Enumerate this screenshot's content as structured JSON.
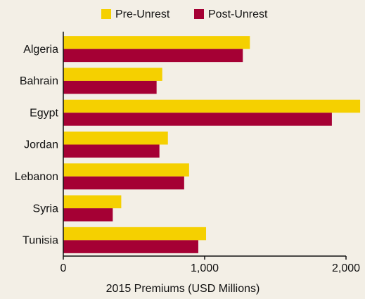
{
  "chart_data": {
    "type": "bar",
    "orientation": "horizontal",
    "categories": [
      "Algeria",
      "Bahrain",
      "Egypt",
      "Jordan",
      "Lebanon",
      "Syria",
      "Tunisia"
    ],
    "series": [
      {
        "name": "Pre-Unrest",
        "color": "#f5d000",
        "values": [
          1320,
          700,
          2100,
          740,
          890,
          410,
          1010
        ]
      },
      {
        "name": "Post-Unrest",
        "color": "#a50034",
        "values": [
          1270,
          660,
          1900,
          680,
          855,
          350,
          955
        ]
      }
    ],
    "xlabel": "2015 Premiums (USD Millions)",
    "xlim": [
      0,
      2000
    ],
    "xticks": [
      0,
      {
        "value": 1000,
        "label": "1,000"
      },
      {
        "value": 2000,
        "label": "2,000"
      }
    ],
    "legend": "top",
    "grid": false
  }
}
